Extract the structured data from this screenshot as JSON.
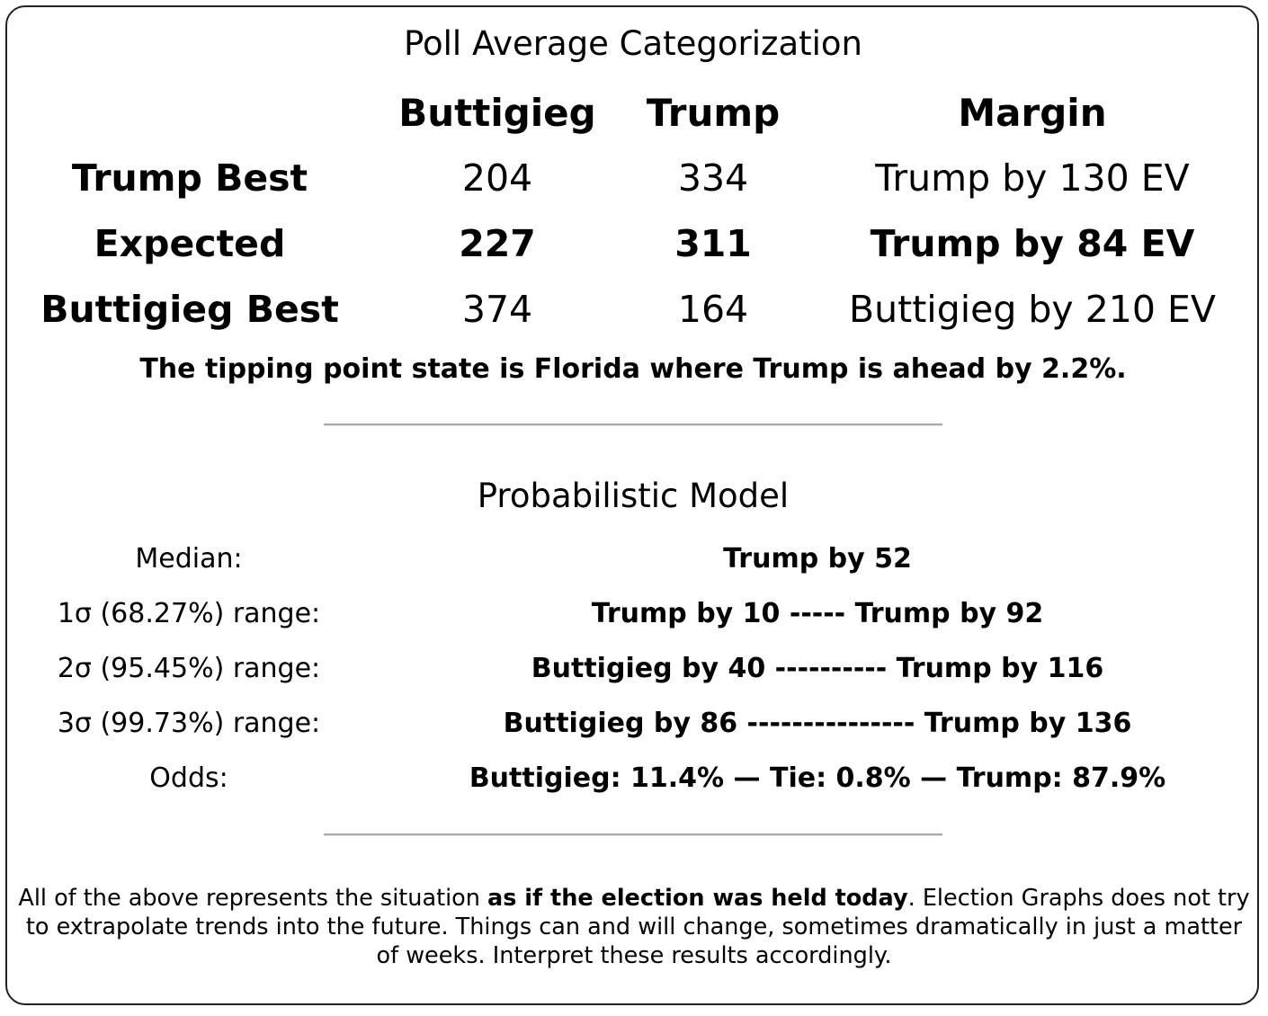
{
  "poll_average": {
    "title": "Poll Average Categorization",
    "headers": {
      "candidate_a": "Buttigieg",
      "candidate_b": "Trump",
      "margin": "Margin"
    },
    "rows": [
      {
        "label": "Trump Best",
        "a": "204",
        "b": "334",
        "margin": "Trump by 130 EV"
      },
      {
        "label": "Expected",
        "a": "227",
        "b": "311",
        "margin": "Trump by 84 EV"
      },
      {
        "label": "Buttigieg Best",
        "a": "374",
        "b": "164",
        "margin": "Buttigieg by 210 EV"
      }
    ],
    "tipping_point": "The tipping point state is Florida where Trump is ahead by 2.2%."
  },
  "probabilistic_model": {
    "title": "Probabilistic Model",
    "rows": [
      {
        "label": "Median:",
        "value": "Trump by 52"
      },
      {
        "label": "1σ (68.27%) range:",
        "value": "Trump by 10 ----- Trump by 92"
      },
      {
        "label": "2σ (95.45%) range:",
        "value": "Buttigieg by 40 ---------- Trump by 116"
      },
      {
        "label": "3σ (99.73%) range:",
        "value": "Buttigieg by 86 --------------- Trump by 136"
      },
      {
        "label": "Odds:",
        "value": "Buttigieg: 11.4% — Tie: 0.8% — Trump: 87.9%"
      }
    ]
  },
  "footer": {
    "text_before": "All of the above represents the situation ",
    "text_bold": "as if the election was held today",
    "text_after": ". Election Graphs does not try to extrapolate trends into the future. Things can and will change, sometimes dramatically in just a matter of weeks. Interpret these results accordingly."
  }
}
